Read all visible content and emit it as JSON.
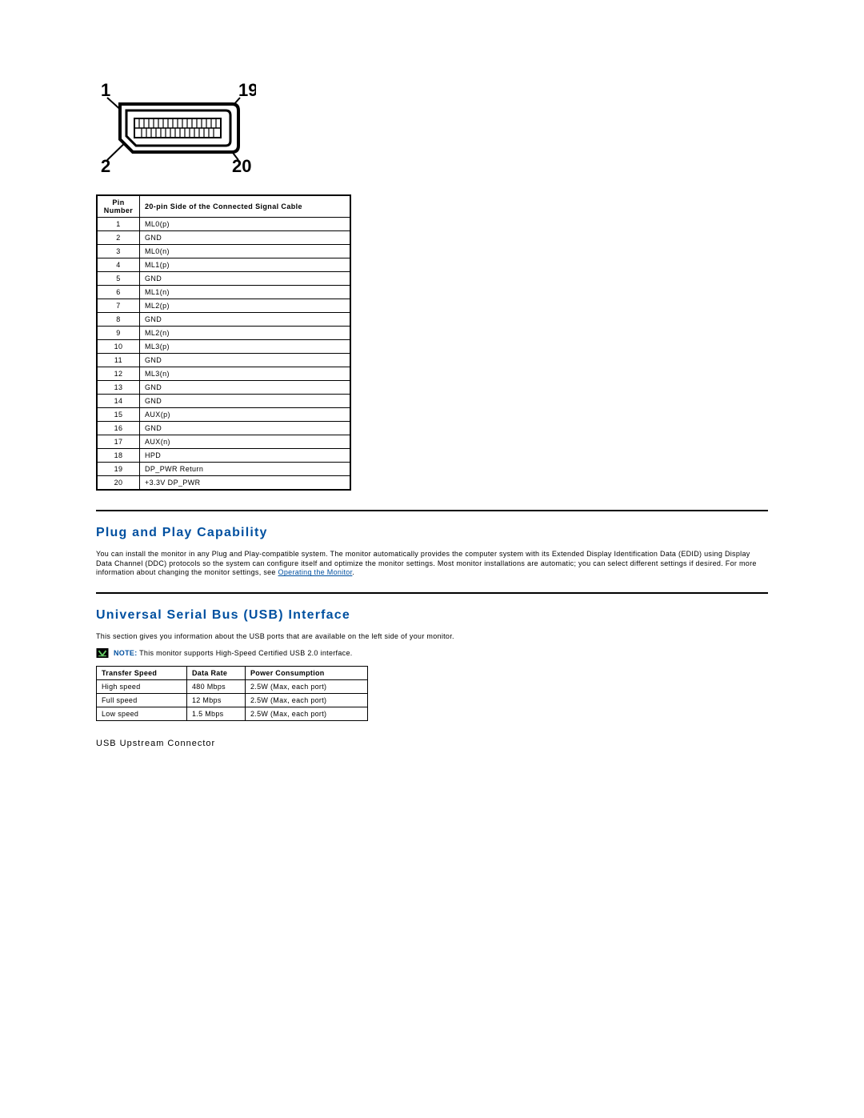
{
  "connector": {
    "label_top_left": "1",
    "label_top_right": "19",
    "label_bottom_left": "2",
    "label_bottom_right": "20"
  },
  "pin_table": {
    "header": {
      "pin": "Pin Number",
      "signal": "20-pin Side of the Connected Signal Cable"
    },
    "rows": [
      {
        "pin": "1",
        "signal": "ML0(p)"
      },
      {
        "pin": "2",
        "signal": "GND"
      },
      {
        "pin": "3",
        "signal": "ML0(n)"
      },
      {
        "pin": "4",
        "signal": "ML1(p)"
      },
      {
        "pin": "5",
        "signal": "GND"
      },
      {
        "pin": "6",
        "signal": "ML1(n)"
      },
      {
        "pin": "7",
        "signal": "ML2(p)"
      },
      {
        "pin": "8",
        "signal": "GND"
      },
      {
        "pin": "9",
        "signal": "ML2(n)"
      },
      {
        "pin": "10",
        "signal": "ML3(p)"
      },
      {
        "pin": "11",
        "signal": "GND"
      },
      {
        "pin": "12",
        "signal": "ML3(n)"
      },
      {
        "pin": "13",
        "signal": "GND"
      },
      {
        "pin": "14",
        "signal": "GND"
      },
      {
        "pin": "15",
        "signal": "AUX(p)"
      },
      {
        "pin": "16",
        "signal": "GND"
      },
      {
        "pin": "17",
        "signal": "AUX(n)"
      },
      {
        "pin": "18",
        "signal": "HPD"
      },
      {
        "pin": "19",
        "signal": "DP_PWR Return"
      },
      {
        "pin": "20",
        "signal": "+3.3V DP_PWR"
      }
    ]
  },
  "section1": {
    "title": "Plug and Play Capability",
    "body_pre": "You can install the monitor in any Plug and Play-compatible system. The monitor automatically provides the computer system with its Extended Display Identification Data (EDID) using Display Data Channel (DDC) protocols so the system can configure itself and optimize the monitor settings. Most monitor installations are automatic; you can select different settings if desired. For more information about changing the monitor settings, see ",
    "link_text": "Operating the Monitor",
    "body_post": "."
  },
  "section2": {
    "title": "Universal Serial Bus (USB) Interface",
    "intro": "This section gives you information about the USB ports that are available on the left side of your monitor.",
    "note_label": "NOTE:",
    "note_text": " This monitor supports High-Speed Certified USB 2.0 interface.",
    "usb_table": {
      "header": {
        "a": "Transfer Speed",
        "b": "Data Rate",
        "c": "Power Consumption"
      },
      "rows": [
        {
          "a": "High speed",
          "b": "480 Mbps",
          "c": "2.5W (Max, each port)"
        },
        {
          "a": "Full speed",
          "b": "12 Mbps",
          "c": "2.5W (Max, each port)"
        },
        {
          "a": "Low speed",
          "b": "1.5 Mbps",
          "c": "2.5W (Max, each port)"
        }
      ]
    },
    "sub_title": "USB Upstream Connector"
  }
}
